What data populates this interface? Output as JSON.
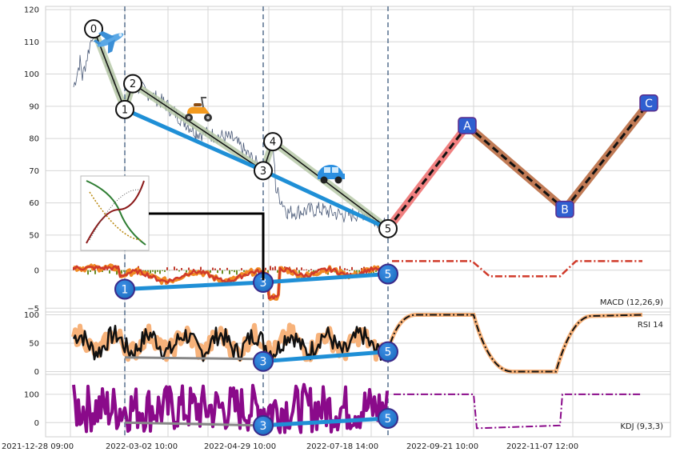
{
  "chart_data": [
    {
      "type": "line",
      "panel": "price",
      "y_ticks": [
        120,
        110,
        100,
        90,
        80,
        70,
        60,
        50
      ],
      "ylim": [
        45,
        121
      ],
      "x_tick_labels": [
        "2021-12-28 09:00",
        "2022-03-02 10:00",
        "2022-04-29 10:00",
        "2022-07-18 14:00",
        "2022-09-21 10:00",
        "2022-11-07 12:00"
      ],
      "grid": true,
      "wave_points": [
        {
          "label": "0",
          "value": 114
        },
        {
          "label": "1",
          "value": 89
        },
        {
          "label": "2",
          "value": 97
        },
        {
          "label": "3",
          "value": 70
        },
        {
          "label": "4",
          "value": 79
        },
        {
          "label": "5",
          "value": 52
        }
      ],
      "projection_points": [
        {
          "label": "A",
          "value": 84
        },
        {
          "label": "B",
          "value": 58
        },
        {
          "label": "C",
          "value": 91
        }
      ],
      "icons": [
        "airplane-icon",
        "scooter-icon",
        "car-icon",
        "pattern-thumbnail"
      ]
    },
    {
      "type": "line",
      "panel": "macd",
      "label": "MACD (12,26,9)",
      "y_ticks": [
        0,
        -5
      ],
      "ylim": [
        -5.5,
        2.5
      ],
      "divergence_points": [
        {
          "label": "1",
          "value": -2.5
        },
        {
          "label": "3",
          "value": -1.6
        },
        {
          "label": "5",
          "value": -0.5
        }
      ]
    },
    {
      "type": "line",
      "panel": "rsi",
      "label": "RSI 14",
      "y_ticks": [
        100,
        50,
        0
      ],
      "ylim": [
        -5,
        105
      ],
      "divergence_points": [
        {
          "label": "3",
          "value": 18
        },
        {
          "label": "5",
          "value": 35
        }
      ]
    },
    {
      "type": "line",
      "panel": "kdj",
      "label": "KDJ (9,3,3)",
      "y_ticks": [
        100,
        0
      ],
      "ylim": [
        -50,
        170
      ],
      "divergence_points": [
        {
          "label": "3",
          "value": -10
        },
        {
          "label": "5",
          "value": 15
        }
      ]
    }
  ],
  "colors": {
    "divergence": "#1f8fd6",
    "projection_up": "#f08080",
    "projection_down": "#c07a55",
    "macd": "#d03a2a",
    "rsi": "#111111",
    "kdj": "#8a0a8a",
    "marker_fill": "#2f5fd0"
  }
}
